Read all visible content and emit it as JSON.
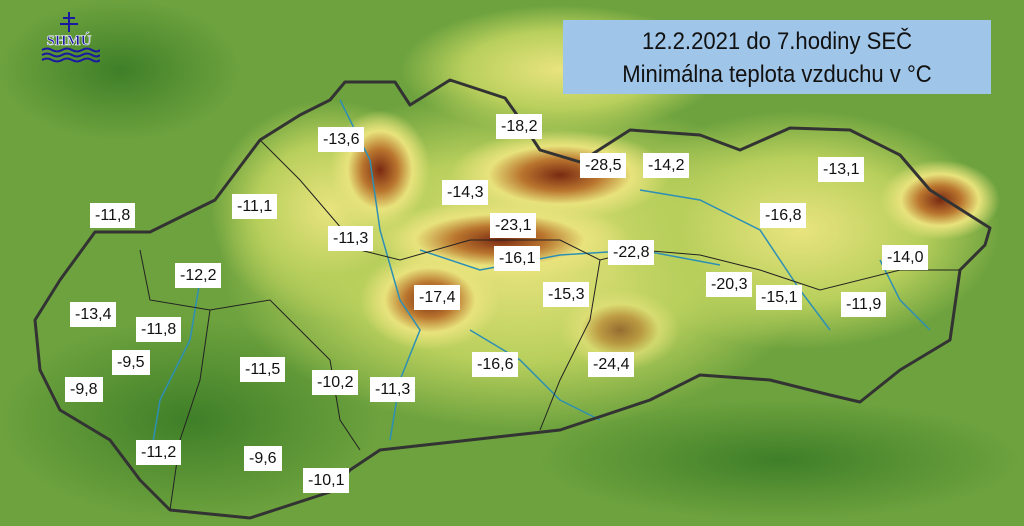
{
  "title": {
    "line1": "12.2.2021 do 7.hodiny SEČ",
    "line2": "Minimálna teplota vzduchu v °C"
  },
  "logo": {
    "text": "SHMÚ"
  },
  "colors": {
    "lowland": "#4f8f2e",
    "hills": "#e6e27a",
    "mountains": "#8b2a14",
    "rivers": "#2e8fb5",
    "border": "#333333",
    "title_bg": "#9fc5e8"
  },
  "stations": [
    "-13,6",
    "-18,2",
    "-28,5",
    "-14,2",
    "-13,1",
    "-11,8",
    "-11,1",
    "-14,3",
    "-16,8",
    "-11,3",
    "-23,1",
    "-16,1",
    "-22,8",
    "-14,0",
    "-12,2",
    "-17,4",
    "-15,3",
    "-20,3",
    "-15,1",
    "-11,9",
    "-13,4",
    "-11,8",
    "-9,5",
    "-11,5",
    "-16,6",
    "-24,4",
    "-10,2",
    "-11,3",
    "-9,8",
    "-11,2",
    "-9,6",
    "-10,1"
  ]
}
